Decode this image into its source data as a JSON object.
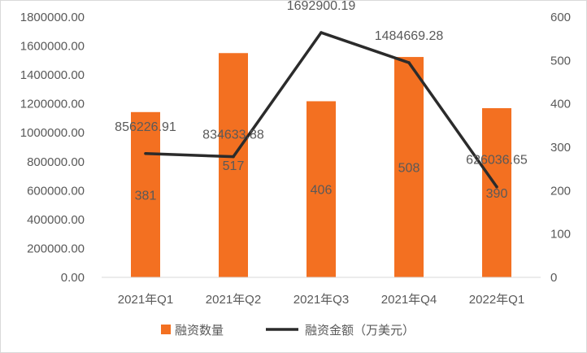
{
  "chart_data": {
    "type": "bar+line",
    "title": "",
    "categories": [
      "2021年Q1",
      "2021年Q2",
      "2021年Q3",
      "2021年Q4",
      "2022年Q1"
    ],
    "series": [
      {
        "name": "融资数量",
        "type": "bar",
        "axis": "right",
        "values": [
          381,
          517,
          406,
          508,
          390
        ],
        "labels": [
          "381",
          "517",
          "406",
          "508",
          "390"
        ],
        "color": "#f37021"
      },
      {
        "name": "融资金额（万美元）",
        "type": "line",
        "axis": "left",
        "values": [
          856226.91,
          834633.88,
          1692900.19,
          1484669.28,
          626036.65
        ],
        "labels": [
          "856226.91",
          "834633.88",
          "1692900.19",
          "1484669.28",
          "626036.65"
        ],
        "color": "#2b2b2b"
      }
    ],
    "left_axis": {
      "ylim": [
        0,
        1800000
      ],
      "ticks": [
        "0.00",
        "200000.00",
        "400000.00",
        "600000.00",
        "800000.00",
        "1000000.00",
        "1200000.00",
        "1400000.00",
        "1600000.00",
        "1800000.00"
      ]
    },
    "right_axis": {
      "ylim": [
        0,
        600
      ],
      "ticks": [
        "0",
        "100",
        "200",
        "300",
        "400",
        "500",
        "600"
      ]
    },
    "grid": false,
    "legend_position": "bottom"
  }
}
